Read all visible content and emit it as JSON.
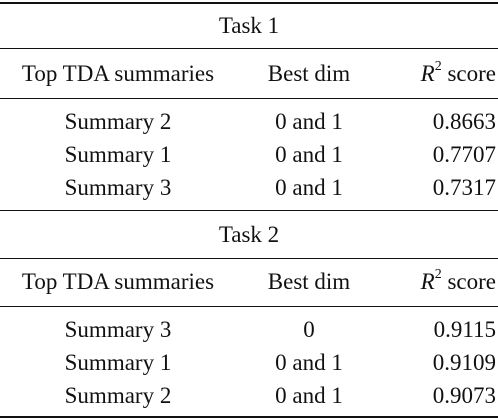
{
  "sections": [
    {
      "title": "Task 1",
      "headers": {
        "col1": "Top TDA summaries",
        "col2": "Best dim",
        "col3_symbol": "R",
        "col3_sup": "2",
        "col3_suffix": "score"
      },
      "rows": [
        {
          "summary": "Summary 2",
          "dim": "0 and 1",
          "score": "0.8663"
        },
        {
          "summary": "Summary 1",
          "dim": "0 and 1",
          "score": "0.7707"
        },
        {
          "summary": "Summary 3",
          "dim": "0 and 1",
          "score": "0.7317"
        }
      ]
    },
    {
      "title": "Task 2",
      "headers": {
        "col1": "Top TDA summaries",
        "col2": "Best dim",
        "col3_symbol": "R",
        "col3_sup": "2",
        "col3_suffix": "score"
      },
      "rows": [
        {
          "summary": "Summary 3",
          "dim": "0",
          "score": "0.9115"
        },
        {
          "summary": "Summary 1",
          "dim": "0 and 1",
          "score": "0.9109"
        },
        {
          "summary": "Summary 2",
          "dim": "0 and 1",
          "score": "0.9073"
        }
      ]
    }
  ]
}
